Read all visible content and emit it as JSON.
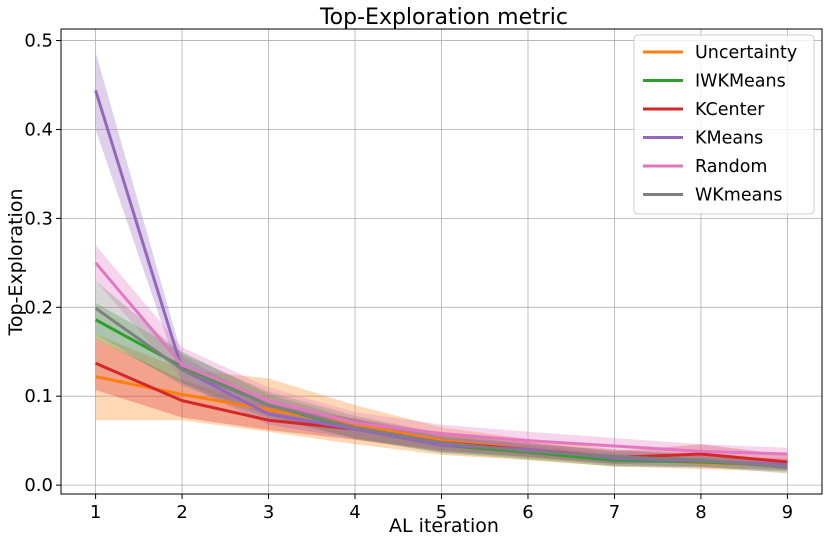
{
  "chart_data": {
    "type": "line",
    "title": "Top-Exploration metric",
    "xlabel": "AL iteration",
    "ylabel": "Top-Exploration",
    "x": [
      1,
      2,
      3,
      4,
      5,
      6,
      7,
      8,
      9
    ],
    "xlim": [
      0.6,
      9.4
    ],
    "ylim": [
      -0.01,
      0.513
    ],
    "xticks": [
      1,
      2,
      3,
      4,
      5,
      6,
      7,
      8,
      9
    ],
    "yticks": [
      0.0,
      0.1,
      0.2,
      0.3,
      0.4,
      0.5
    ],
    "ytick_labels": [
      "0.0",
      "0.1",
      "0.2",
      "0.3",
      "0.4",
      "0.5"
    ],
    "grid": true,
    "legend_position": "top-right",
    "series": [
      {
        "name": "Uncertainty",
        "color": "#ff7f0e",
        "values": [
          0.122,
          0.102,
          0.085,
          0.068,
          0.05,
          0.04,
          0.03,
          0.025,
          0.022
        ],
        "lower": [
          0.073,
          0.073,
          0.06,
          0.046,
          0.034,
          0.028,
          0.021,
          0.018,
          0.015
        ],
        "upper": [
          0.17,
          0.13,
          0.12,
          0.09,
          0.065,
          0.052,
          0.04,
          0.033,
          0.03
        ]
      },
      {
        "name": "IWKMeans",
        "color": "#2ca02c",
        "values": [
          0.186,
          0.133,
          0.09,
          0.063,
          0.045,
          0.037,
          0.028,
          0.026,
          0.022
        ],
        "lower": [
          0.165,
          0.115,
          0.078,
          0.052,
          0.036,
          0.029,
          0.021,
          0.02,
          0.016
        ],
        "upper": [
          0.205,
          0.15,
          0.102,
          0.074,
          0.055,
          0.045,
          0.035,
          0.032,
          0.028
        ]
      },
      {
        "name": "KCenter",
        "color": "#d62728",
        "values": [
          0.137,
          0.095,
          0.073,
          0.063,
          0.048,
          0.04,
          0.031,
          0.035,
          0.026
        ],
        "lower": [
          0.107,
          0.076,
          0.062,
          0.051,
          0.039,
          0.032,
          0.024,
          0.026,
          0.018
        ],
        "upper": [
          0.165,
          0.118,
          0.09,
          0.075,
          0.058,
          0.048,
          0.038,
          0.046,
          0.034
        ]
      },
      {
        "name": "KMeans",
        "color": "#9467bd",
        "values": [
          0.444,
          0.13,
          0.08,
          0.063,
          0.045,
          0.04,
          0.03,
          0.027,
          0.023
        ],
        "lower": [
          0.4,
          0.115,
          0.068,
          0.052,
          0.037,
          0.032,
          0.022,
          0.02,
          0.017
        ],
        "upper": [
          0.487,
          0.145,
          0.092,
          0.074,
          0.053,
          0.048,
          0.038,
          0.034,
          0.029
        ]
      },
      {
        "name": "Random",
        "color": "#e377c2",
        "values": [
          0.25,
          0.135,
          0.095,
          0.07,
          0.058,
          0.05,
          0.044,
          0.038,
          0.035
        ],
        "lower": [
          0.23,
          0.118,
          0.08,
          0.058,
          0.048,
          0.04,
          0.035,
          0.03,
          0.028
        ],
        "upper": [
          0.27,
          0.155,
          0.11,
          0.082,
          0.068,
          0.06,
          0.053,
          0.046,
          0.042
        ]
      },
      {
        "name": "WKmeans",
        "color": "#7f7f7f",
        "values": [
          0.199,
          0.13,
          0.09,
          0.065,
          0.048,
          0.038,
          0.032,
          0.028,
          0.02
        ],
        "lower": [
          0.17,
          0.112,
          0.075,
          0.053,
          0.038,
          0.03,
          0.024,
          0.021,
          0.013
        ],
        "upper": [
          0.23,
          0.148,
          0.105,
          0.078,
          0.058,
          0.046,
          0.04,
          0.035,
          0.027
        ]
      }
    ]
  }
}
